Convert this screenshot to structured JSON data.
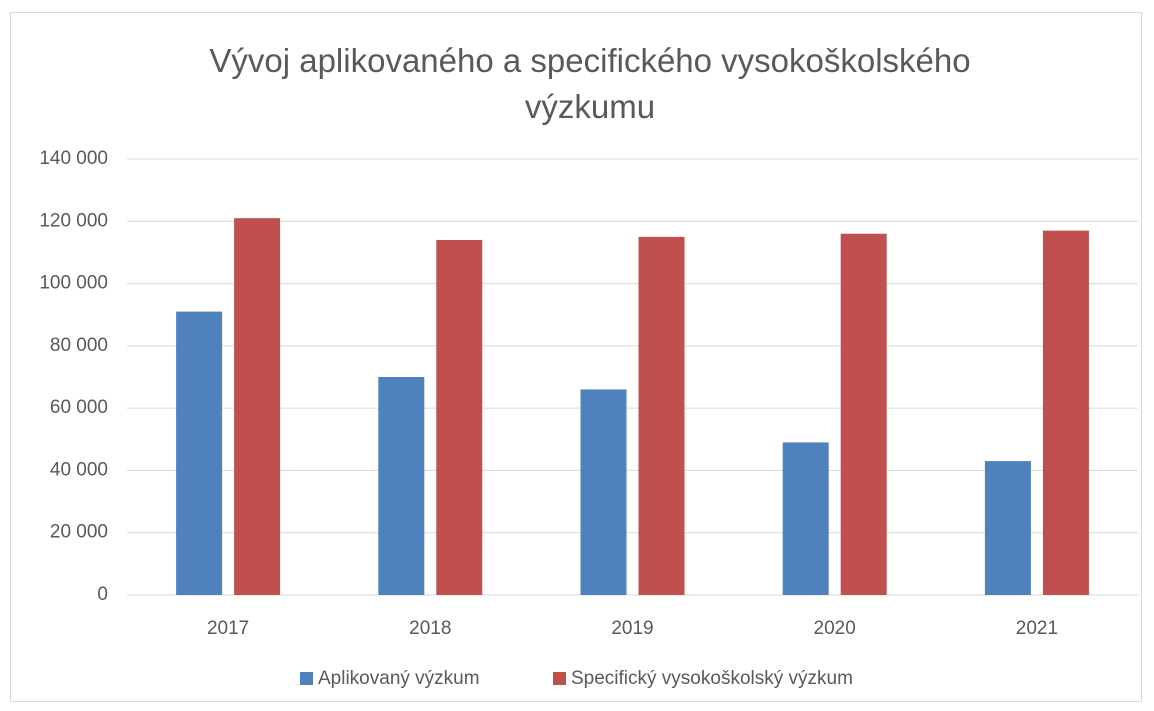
{
  "chart_data": {
    "type": "bar",
    "title": "Vývoj aplikovaného a specifického vysokoškolského výzkumu",
    "categories": [
      "2017",
      "2018",
      "2019",
      "2020",
      "2021"
    ],
    "series": [
      {
        "name": "Aplikovaný výzkum",
        "color": "#4f81bd",
        "values": [
          91000,
          70000,
          66000,
          49000,
          43000
        ]
      },
      {
        "name": "Specifický vysokoškolský výzkum",
        "color": "#c0504d",
        "values": [
          121000,
          114000,
          115000,
          116000,
          117000
        ]
      }
    ],
    "ylim": [
      0,
      140000
    ],
    "yticks": [
      0,
      {
        "value": 20000,
        "label": "20 000"
      },
      {
        "value": 40000,
        "label": "40 000"
      },
      {
        "value": 60000,
        "label": "60 000"
      },
      {
        "value": 80000,
        "label": "80 000"
      },
      {
        "value": 100000,
        "label": "100 000"
      },
      {
        "value": 120000,
        "label": "120 000"
      },
      {
        "value": 140000,
        "label": "140 000"
      }
    ],
    "grid": true,
    "legend": "bottom"
  }
}
